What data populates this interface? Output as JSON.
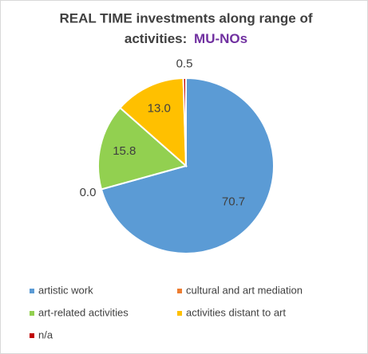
{
  "chart_data": {
    "type": "pie",
    "title_lines": [
      "REAL TIME investments along range of",
      "activities:"
    ],
    "title_highlight": "MU-NOs",
    "title_highlight_color": "#7030a0",
    "categories": [
      "artistic work",
      "cultural and art mediation",
      "art-related activities",
      "activities distant to art",
      "n/a"
    ],
    "values": [
      70.7,
      0.0,
      15.8,
      13.0,
      0.5
    ],
    "value_labels": [
      "70.7",
      "0.0",
      "15.8",
      "13.0",
      "0.5"
    ],
    "colors": [
      "#5b9bd5",
      "#ed7d31",
      "#92d050",
      "#ffc000",
      "#c00000"
    ],
    "legend": "bottom"
  }
}
